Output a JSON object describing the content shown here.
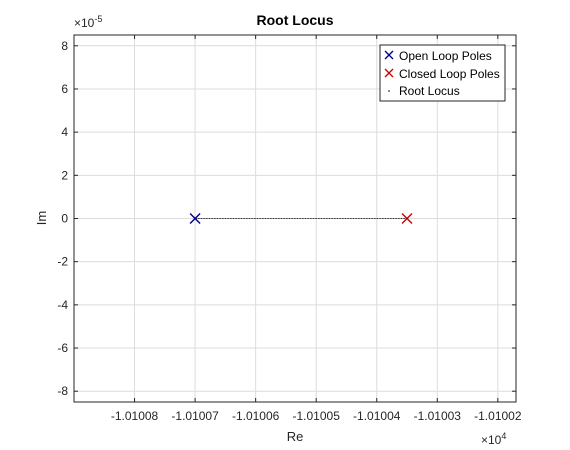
{
  "chart_data": {
    "type": "scatter",
    "title": "Root Locus",
    "xlabel": "Re",
    "ylabel": "Im",
    "x_exponent_label": "×10",
    "x_exponent": "4",
    "y_exponent_label": "×10",
    "y_exponent": "-5",
    "xlim": [
      -1.01009,
      -1.010017
    ],
    "ylim": [
      -8.5,
      8.5
    ],
    "x_ticks": [
      -1.01008,
      -1.01007,
      -1.01006,
      -1.01005,
      -1.01004,
      -1.01003,
      -1.01002
    ],
    "x_tick_labels": [
      "-1.01008",
      "-1.01007",
      "-1.01006",
      "-1.01005",
      "-1.01004",
      "-1.01003",
      "-1.01002"
    ],
    "y_ticks": [
      -8,
      -6,
      -4,
      -2,
      0,
      2,
      4,
      6,
      8
    ],
    "y_tick_labels": [
      "-8",
      "-6",
      "-4",
      "-2",
      "0",
      "2",
      "4",
      "6",
      "8"
    ],
    "grid": true,
    "legend_position": "top-right",
    "series": [
      {
        "name": "Open Loop Poles",
        "marker": "x",
        "color": "#00008b",
        "points": [
          [
            -1.01007,
            0
          ]
        ]
      },
      {
        "name": "Closed Loop Poles",
        "marker": "x",
        "color": "#cc0000",
        "points": [
          [
            -1.010035,
            0
          ]
        ]
      },
      {
        "name": "Root Locus",
        "marker": "dot",
        "color": "#000000",
        "x_range": [
          -1.01007,
          -1.010035
        ],
        "y": 0
      }
    ]
  }
}
